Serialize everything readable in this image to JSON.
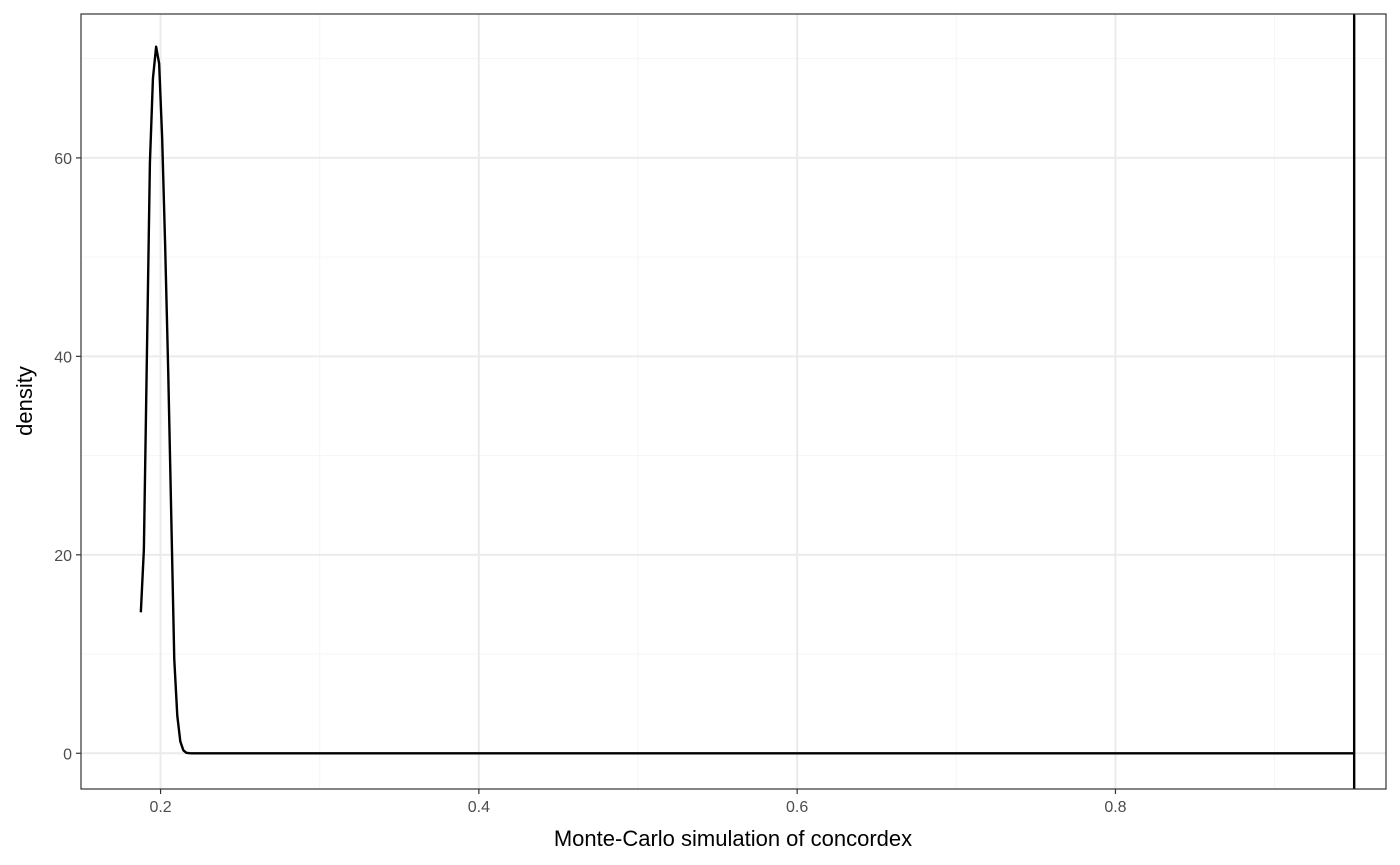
{
  "chart_data": {
    "type": "line",
    "title": "",
    "xlabel": "Monte-Carlo simulation of concordex",
    "ylabel": "density",
    "xlim": [
      0.15,
      0.97
    ],
    "ylim": [
      -3.6,
      74.5
    ],
    "x_ticks": [
      0.2,
      0.4,
      0.6,
      0.8
    ],
    "x_tick_labels": [
      "0.2",
      "0.4",
      "0.6",
      "0.8"
    ],
    "y_ticks": [
      0,
      20,
      40,
      60
    ],
    "y_tick_labels": [
      "0",
      "20",
      "40",
      "60"
    ],
    "x_minor_ticks": [
      0.3,
      0.5,
      0.7,
      0.9
    ],
    "y_minor_ticks": [
      10,
      30,
      50,
      70
    ],
    "grid": true,
    "legend": "none",
    "series": [
      {
        "x": [
          0.1876,
          0.1895,
          0.1914,
          0.1933,
          0.1952,
          0.1972,
          0.1991,
          0.201,
          0.2029,
          0.2048,
          0.2067,
          0.2086,
          0.2105,
          0.2124,
          0.2143,
          0.2162,
          0.2181,
          0.22,
          0.25,
          0.3,
          0.4,
          0.5,
          0.6,
          0.7,
          0.8,
          0.9,
          0.95
        ],
        "y": [
          14.2,
          20.5,
          40.0,
          59.5,
          68.0,
          71.2,
          69.5,
          62.0,
          51.0,
          38.5,
          24.0,
          9.5,
          3.8,
          1.2,
          0.3,
          0.05,
          0.01,
          0.0,
          0.0,
          0.0,
          0.0,
          0.0,
          0.0,
          0.0,
          0.0,
          0.0,
          0.0
        ]
      }
    ],
    "vline": {
      "x": 0.95
    },
    "colors": {
      "line": "#000000",
      "grid_major": "#ebebeb",
      "grid_minor": "#f5f5f5",
      "border": "#333333",
      "tick_label": "#4d4d4d"
    }
  }
}
